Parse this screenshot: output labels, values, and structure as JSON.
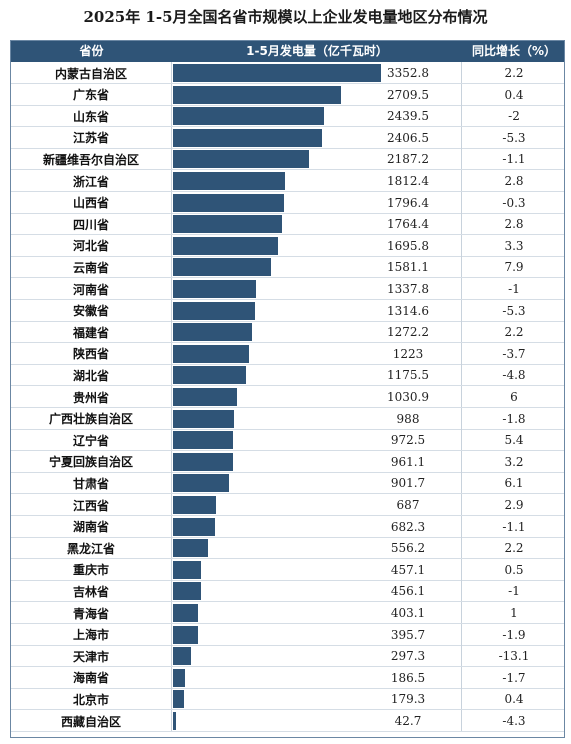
{
  "title": "2025年 1-5月全国名省市规模以上企业发电量地区分布情况",
  "header": {
    "province": "省份",
    "generation": "1-5月发电量（亿千瓦时）",
    "yoy": "同比增长（%）"
  },
  "colors": {
    "bar": "#2f5477",
    "header_bg": "#2f5477"
  },
  "chart_data": {
    "type": "table",
    "columns": [
      "省份",
      "1-5月发电量（亿千瓦时）",
      "同比增长（%）"
    ],
    "rows": [
      {
        "province": "内蒙古自治区",
        "generation": "3352.8",
        "yoy": "2.2"
      },
      {
        "province": "广东省",
        "generation": "2709.5",
        "yoy": "0.4"
      },
      {
        "province": "山东省",
        "generation": "2439.5",
        "yoy": "-2"
      },
      {
        "province": "江苏省",
        "generation": "2406.5",
        "yoy": "-5.3"
      },
      {
        "province": "新疆维吾尔自治区",
        "generation": "2187.2",
        "yoy": "-1.1"
      },
      {
        "province": "浙江省",
        "generation": "1812.4",
        "yoy": "2.8"
      },
      {
        "province": "山西省",
        "generation": "1796.4",
        "yoy": "-0.3"
      },
      {
        "province": "四川省",
        "generation": "1764.4",
        "yoy": "2.8"
      },
      {
        "province": "河北省",
        "generation": "1695.8",
        "yoy": "3.3"
      },
      {
        "province": "云南省",
        "generation": "1581.1",
        "yoy": "7.9"
      },
      {
        "province": "河南省",
        "generation": "1337.8",
        "yoy": "-1"
      },
      {
        "province": "安徽省",
        "generation": "1314.6",
        "yoy": "-5.3"
      },
      {
        "province": "福建省",
        "generation": "1272.2",
        "yoy": "2.2"
      },
      {
        "province": "陕西省",
        "generation": "1223",
        "yoy": "-3.7"
      },
      {
        "province": "湖北省",
        "generation": "1175.5",
        "yoy": "-4.8"
      },
      {
        "province": "贵州省",
        "generation": "1030.9",
        "yoy": "6"
      },
      {
        "province": "广西壮族自治区",
        "generation": "988",
        "yoy": "-1.8"
      },
      {
        "province": "辽宁省",
        "generation": "972.5",
        "yoy": "5.4"
      },
      {
        "province": "宁夏回族自治区",
        "generation": "961.1",
        "yoy": "3.2"
      },
      {
        "province": "甘肃省",
        "generation": "901.7",
        "yoy": "6.1"
      },
      {
        "province": "江西省",
        "generation": "687",
        "yoy": "2.9"
      },
      {
        "province": "湖南省",
        "generation": "682.3",
        "yoy": "-1.1"
      },
      {
        "province": "黑龙江省",
        "generation": "556.2",
        "yoy": "2.2"
      },
      {
        "province": "重庆市",
        "generation": "457.1",
        "yoy": "0.5"
      },
      {
        "province": "吉林省",
        "generation": "456.1",
        "yoy": "-1"
      },
      {
        "province": "青海省",
        "generation": "403.1",
        "yoy": "1"
      },
      {
        "province": "上海市",
        "generation": "395.7",
        "yoy": "-1.9"
      },
      {
        "province": "天津市",
        "generation": "297.3",
        "yoy": "-13.1"
      },
      {
        "province": "海南省",
        "generation": "186.5",
        "yoy": "-1.7"
      },
      {
        "province": "北京市",
        "generation": "179.3",
        "yoy": "0.4"
      },
      {
        "province": "西藏自治区",
        "generation": "42.7",
        "yoy": "-4.3"
      }
    ]
  }
}
